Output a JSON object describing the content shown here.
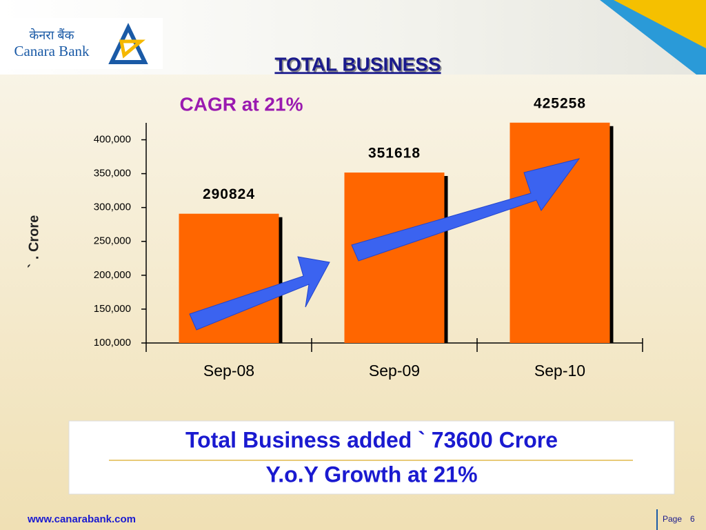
{
  "header": {
    "logo_hindi": "केनरा बैंक",
    "logo_english": "Canara Bank",
    "title": "TOTAL BUSINESS"
  },
  "chart_data": {
    "type": "bar",
    "subtitle": "CAGR at 21%",
    "y_label": "` . Crore",
    "categories": [
      "Sep-08",
      "Sep-09",
      "Sep-10"
    ],
    "values": [
      290824,
      351618,
      425258
    ],
    "color": "#ff6600",
    "ylim": [
      100000,
      425000
    ],
    "yticks": [
      {
        "value": 100000,
        "label": "100,000"
      },
      {
        "value": 150000,
        "label": "150,000"
      },
      {
        "value": 200000,
        "label": "200,000"
      },
      {
        "value": 250000,
        "label": "250,000"
      },
      {
        "value": 300000,
        "label": "300,000"
      },
      {
        "value": 350000,
        "label": "350,000"
      },
      {
        "value": 400000,
        "label": "400,000"
      }
    ],
    "grid": false
  },
  "highlight": {
    "line1": "Total Business added ` 73600 Crore",
    "line2": "Y.o.Y Growth at 21%"
  },
  "footer": {
    "website": "www.canarabank.com",
    "page_label": "Page",
    "page_number": 6
  }
}
